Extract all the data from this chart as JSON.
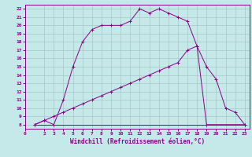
{
  "xlabel": "Windchill (Refroidissement éolien,°C)",
  "background_color": "#c5e8e8",
  "grid_color": "#a8c8c8",
  "line_color": "#880088",
  "xlim": [
    0,
    23.5
  ],
  "ylim": [
    7.5,
    22.5
  ],
  "xticks": [
    0,
    2,
    3,
    4,
    5,
    6,
    7,
    8,
    9,
    10,
    11,
    12,
    13,
    14,
    15,
    16,
    17,
    18,
    19,
    20,
    21,
    22,
    23
  ],
  "yticks": [
    8,
    9,
    10,
    11,
    12,
    13,
    14,
    15,
    16,
    17,
    18,
    19,
    20,
    21,
    22
  ],
  "line1_x": [
    1,
    2,
    3,
    4,
    5,
    6,
    7,
    8,
    9,
    10,
    11,
    12,
    13,
    14,
    15,
    16,
    17,
    18,
    19,
    23
  ],
  "line1_y": [
    8,
    8.5,
    8,
    11,
    15,
    18,
    19.5,
    20,
    20,
    20,
    20.5,
    22,
    21.5,
    22,
    21.5,
    21,
    20.5,
    17.5,
    8,
    8
  ],
  "line2_x": [
    1,
    19,
    23
  ],
  "line2_y": [
    8,
    8,
    8
  ],
  "line3_x": [
    1,
    2,
    3,
    4,
    5,
    6,
    7,
    8,
    9,
    10,
    11,
    12,
    13,
    14,
    15,
    16,
    17,
    18,
    19,
    20,
    21,
    22,
    23
  ],
  "line3_y": [
    8,
    8.5,
    9,
    9.5,
    10,
    10.5,
    11,
    11.5,
    12,
    12.5,
    13,
    13.5,
    14,
    14.5,
    15,
    15.5,
    17,
    17.5,
    15,
    13.5,
    10,
    9.5,
    8
  ]
}
